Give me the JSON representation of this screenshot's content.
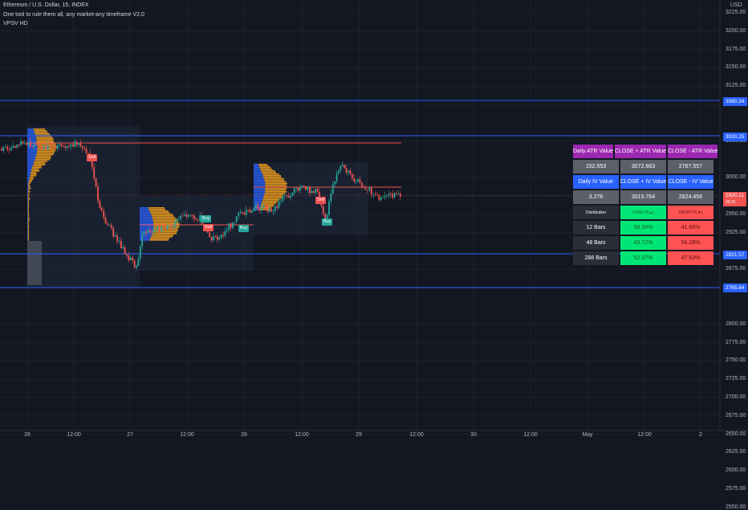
{
  "header": {
    "symbol": "Ethereum / U.S. Dollar, 15, INDEX",
    "indicator1": "One tool to rule them all, any market-any timeframe V2.0",
    "indicator2": "VPSV HD"
  },
  "price_axis": {
    "currency": "USD",
    "labels": [
      "3225.00",
      "3200.00",
      "3175.00",
      "3150.00",
      "3125.00",
      "3100.00",
      "3050.00",
      "3000.00",
      "2975.00",
      "2950.00",
      "2925.00",
      "2875.00",
      "2850.00",
      "2800.00",
      "2775.00",
      "2750.00",
      "2725.00",
      "2700.00",
      "2675.00",
      "2650.00",
      "2625.00",
      "2600.00",
      "2575.00",
      "2550.00"
    ],
    "tags": {
      "level_top": "3080.34",
      "level_mid": "3020.25",
      "current_price": "2920.11",
      "current_countdown": "05:31",
      "level_low": "2821.57",
      "level_bottom": "2765.84"
    }
  },
  "time_axis": {
    "labels": [
      "26",
      "12:00",
      "27",
      "12:00",
      "28",
      "12:00",
      "29",
      "12:00",
      "30",
      "12:00",
      "May",
      "12:00",
      "2"
    ]
  },
  "signals": [
    "Sell",
    "Buy",
    "Sell",
    "Buy",
    "Sell",
    "Buy"
  ],
  "table": {
    "row1": [
      "Daily ATR Value",
      "CLOSE + ATR Value",
      "CLOSE - ATR Value"
    ],
    "row2": [
      "152.553",
      "3072.663",
      "2767.557"
    ],
    "row3": [
      "Daily IV Value",
      "CLOSE + IV Value",
      "CLOSE - IV Value"
    ],
    "row4": [
      "3.276",
      "3015.764",
      "2824.456"
    ],
    "row5": [
      "Distribution",
      "LONG P(▲)",
      "SHORT P(▼)"
    ],
    "rows": [
      {
        "label": "12 Bars",
        "long": "58.34%",
        "short": "41.66%"
      },
      {
        "label": "48 Bars",
        "long": "43.72%",
        "short": "56.28%"
      },
      {
        "label": "288 Bars",
        "long": "52.37%",
        "short": "47.63%"
      }
    ]
  },
  "colors": {
    "background": "#131722",
    "up": "#26a69a",
    "down": "#ef5350",
    "level_line": "#2962ff",
    "volume_profile": "#f7a21b"
  }
}
